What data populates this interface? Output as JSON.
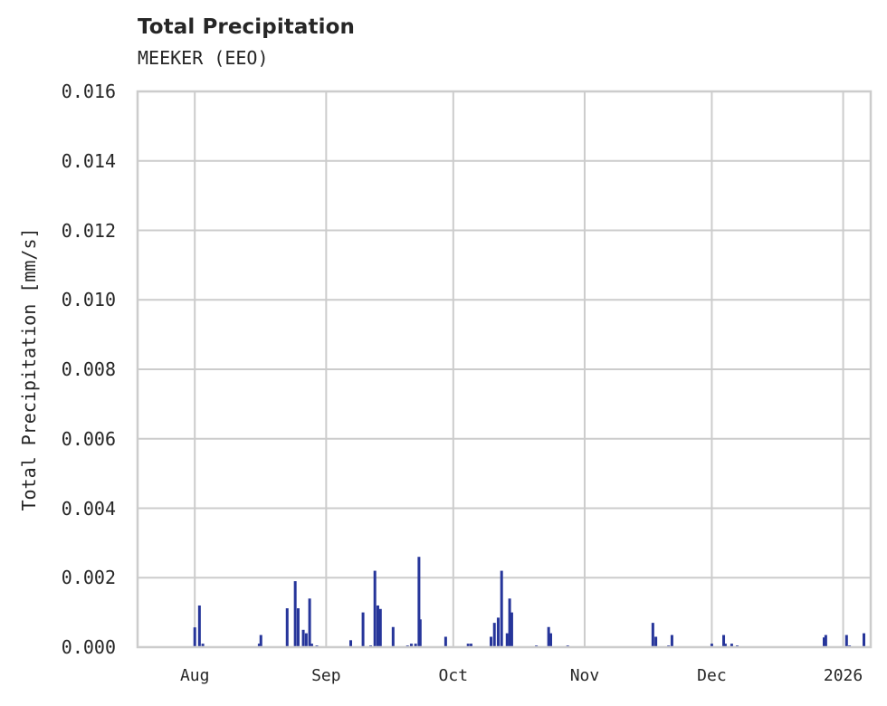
{
  "header": {
    "title": "Total Precipitation",
    "subtitle": "MEEKER (EEO)"
  },
  "colors": {
    "bar": "#26359a",
    "grid": "#cccccc",
    "frame": "#cccccc",
    "text": "#262626"
  },
  "chart_data": {
    "type": "bar",
    "title": "Total Precipitation",
    "subtitle": "MEEKER (EEO)",
    "xlabel": "",
    "ylabel": "Total Precipitation [mm/s]",
    "ylim": [
      0,
      0.016
    ],
    "yticks": [
      "0.000",
      "0.002",
      "0.004",
      "0.006",
      "0.008",
      "0.010",
      "0.012",
      "0.014",
      "0.016"
    ],
    "xticks": [
      "Aug",
      "Sep",
      "Oct",
      "Nov",
      "Dec",
      "2026"
    ],
    "xtick_day_offsets": [
      0,
      31,
      61,
      92,
      122,
      153
    ],
    "x_unit": "days since Aug 1",
    "xlim": [
      -13.5,
      159.5
    ],
    "grid": true,
    "legend": null,
    "series": [
      {
        "name": "Total Precipitation",
        "x": [
          0.0,
          1.1,
          1.9,
          15.2,
          15.6,
          21.8,
          23.7,
          24.4,
          25.6,
          26.3,
          27.1,
          27.6,
          28.8,
          36.8,
          39.7,
          41.5,
          42.5,
          43.2,
          43.8,
          46.8,
          50.2,
          51.1,
          52.1,
          52.9,
          53.2,
          59.2,
          64.5,
          65.2,
          69.9,
          70.7,
          71.6,
          72.4,
          73.7,
          74.3,
          74.8,
          80.6,
          83.5,
          84.0,
          88.0,
          108.1,
          108.8,
          111.8,
          112.6,
          122.0,
          124.8,
          125.2,
          126.7,
          128.0,
          148.5,
          148.9,
          153.8,
          154.5,
          157.9
        ],
        "values": [
          0.00057,
          0.0012,
          0.0001,
          0.0001,
          0.00035,
          0.00112,
          0.0019,
          0.00112,
          0.0005,
          0.0004,
          0.0014,
          0.0001,
          5e-05,
          0.0002,
          0.001,
          5e-05,
          0.0022,
          0.0012,
          0.0011,
          0.00058,
          5e-05,
          0.0001,
          0.0001,
          0.0026,
          0.0008,
          0.0003,
          0.0001,
          0.0001,
          0.0003,
          0.0007,
          0.00085,
          0.0022,
          0.0004,
          0.0014,
          0.001,
          5e-05,
          0.00058,
          0.0004,
          5e-05,
          0.0007,
          0.0003,
          5e-05,
          0.00035,
          0.0001,
          0.00035,
          0.0001,
          0.0001,
          5e-05,
          0.00028,
          0.00035,
          0.00035,
          5e-05,
          0.0004
        ]
      }
    ]
  }
}
